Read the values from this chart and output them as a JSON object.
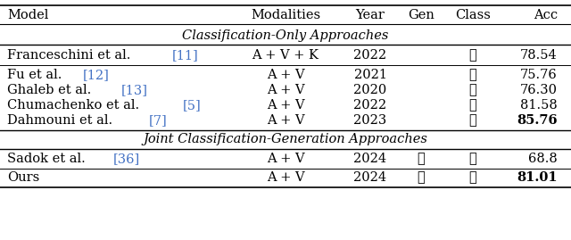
{
  "headers": [
    "Model",
    "Modalities",
    "Year",
    "Gen",
    "Class",
    "Acc"
  ],
  "section1_title": "Classification-Only Approaches",
  "section2_title": "Joint Classification-Generation Approaches",
  "rows_section1": [
    {
      "model_plain": "Franceschini et al. ",
      "model_ref": "[11]",
      "modalities": "A + V + K",
      "year": "2022",
      "gen": "",
      "class": "✓",
      "acc": "78.54",
      "bold_acc": false
    },
    {
      "model_plain": "Fu et al. ",
      "model_ref": "[12]",
      "modalities": "A + V",
      "year": "2021",
      "gen": "",
      "class": "✓",
      "acc": "75.76",
      "bold_acc": false
    },
    {
      "model_plain": "Ghaleb et al. ",
      "model_ref": "[13]",
      "modalities": "A + V",
      "year": "2020",
      "gen": "",
      "class": "✓",
      "acc": "76.30",
      "bold_acc": false
    },
    {
      "model_plain": "Chumachenko et al. ",
      "model_ref": "[5]",
      "modalities": "A + V",
      "year": "2022",
      "gen": "",
      "class": "✓",
      "acc": "81.58",
      "bold_acc": false
    },
    {
      "model_plain": "Dahmouni et al. ",
      "model_ref": "[7]",
      "modalities": "A + V",
      "year": "2023",
      "gen": "",
      "class": "✓",
      "acc": "85.76",
      "bold_acc": true
    }
  ],
  "rows_section2": [
    {
      "model_plain": "Sadok et al. ",
      "model_ref": "[36]",
      "modalities": "A + V",
      "year": "2024",
      "gen": "✓",
      "class": "✓",
      "acc": "68.8",
      "bold_acc": false
    },
    {
      "model_plain": "Ours",
      "model_ref": "",
      "modalities": "A + V",
      "year": "2024",
      "gen": "✓",
      "class": "✓",
      "acc": "81.01",
      "bold_acc": true
    }
  ],
  "ref_color": "#4472c4",
  "text_color": "#000000",
  "bg_color": "#ffffff",
  "font_size": 10.5,
  "section_font_size": 10.5
}
